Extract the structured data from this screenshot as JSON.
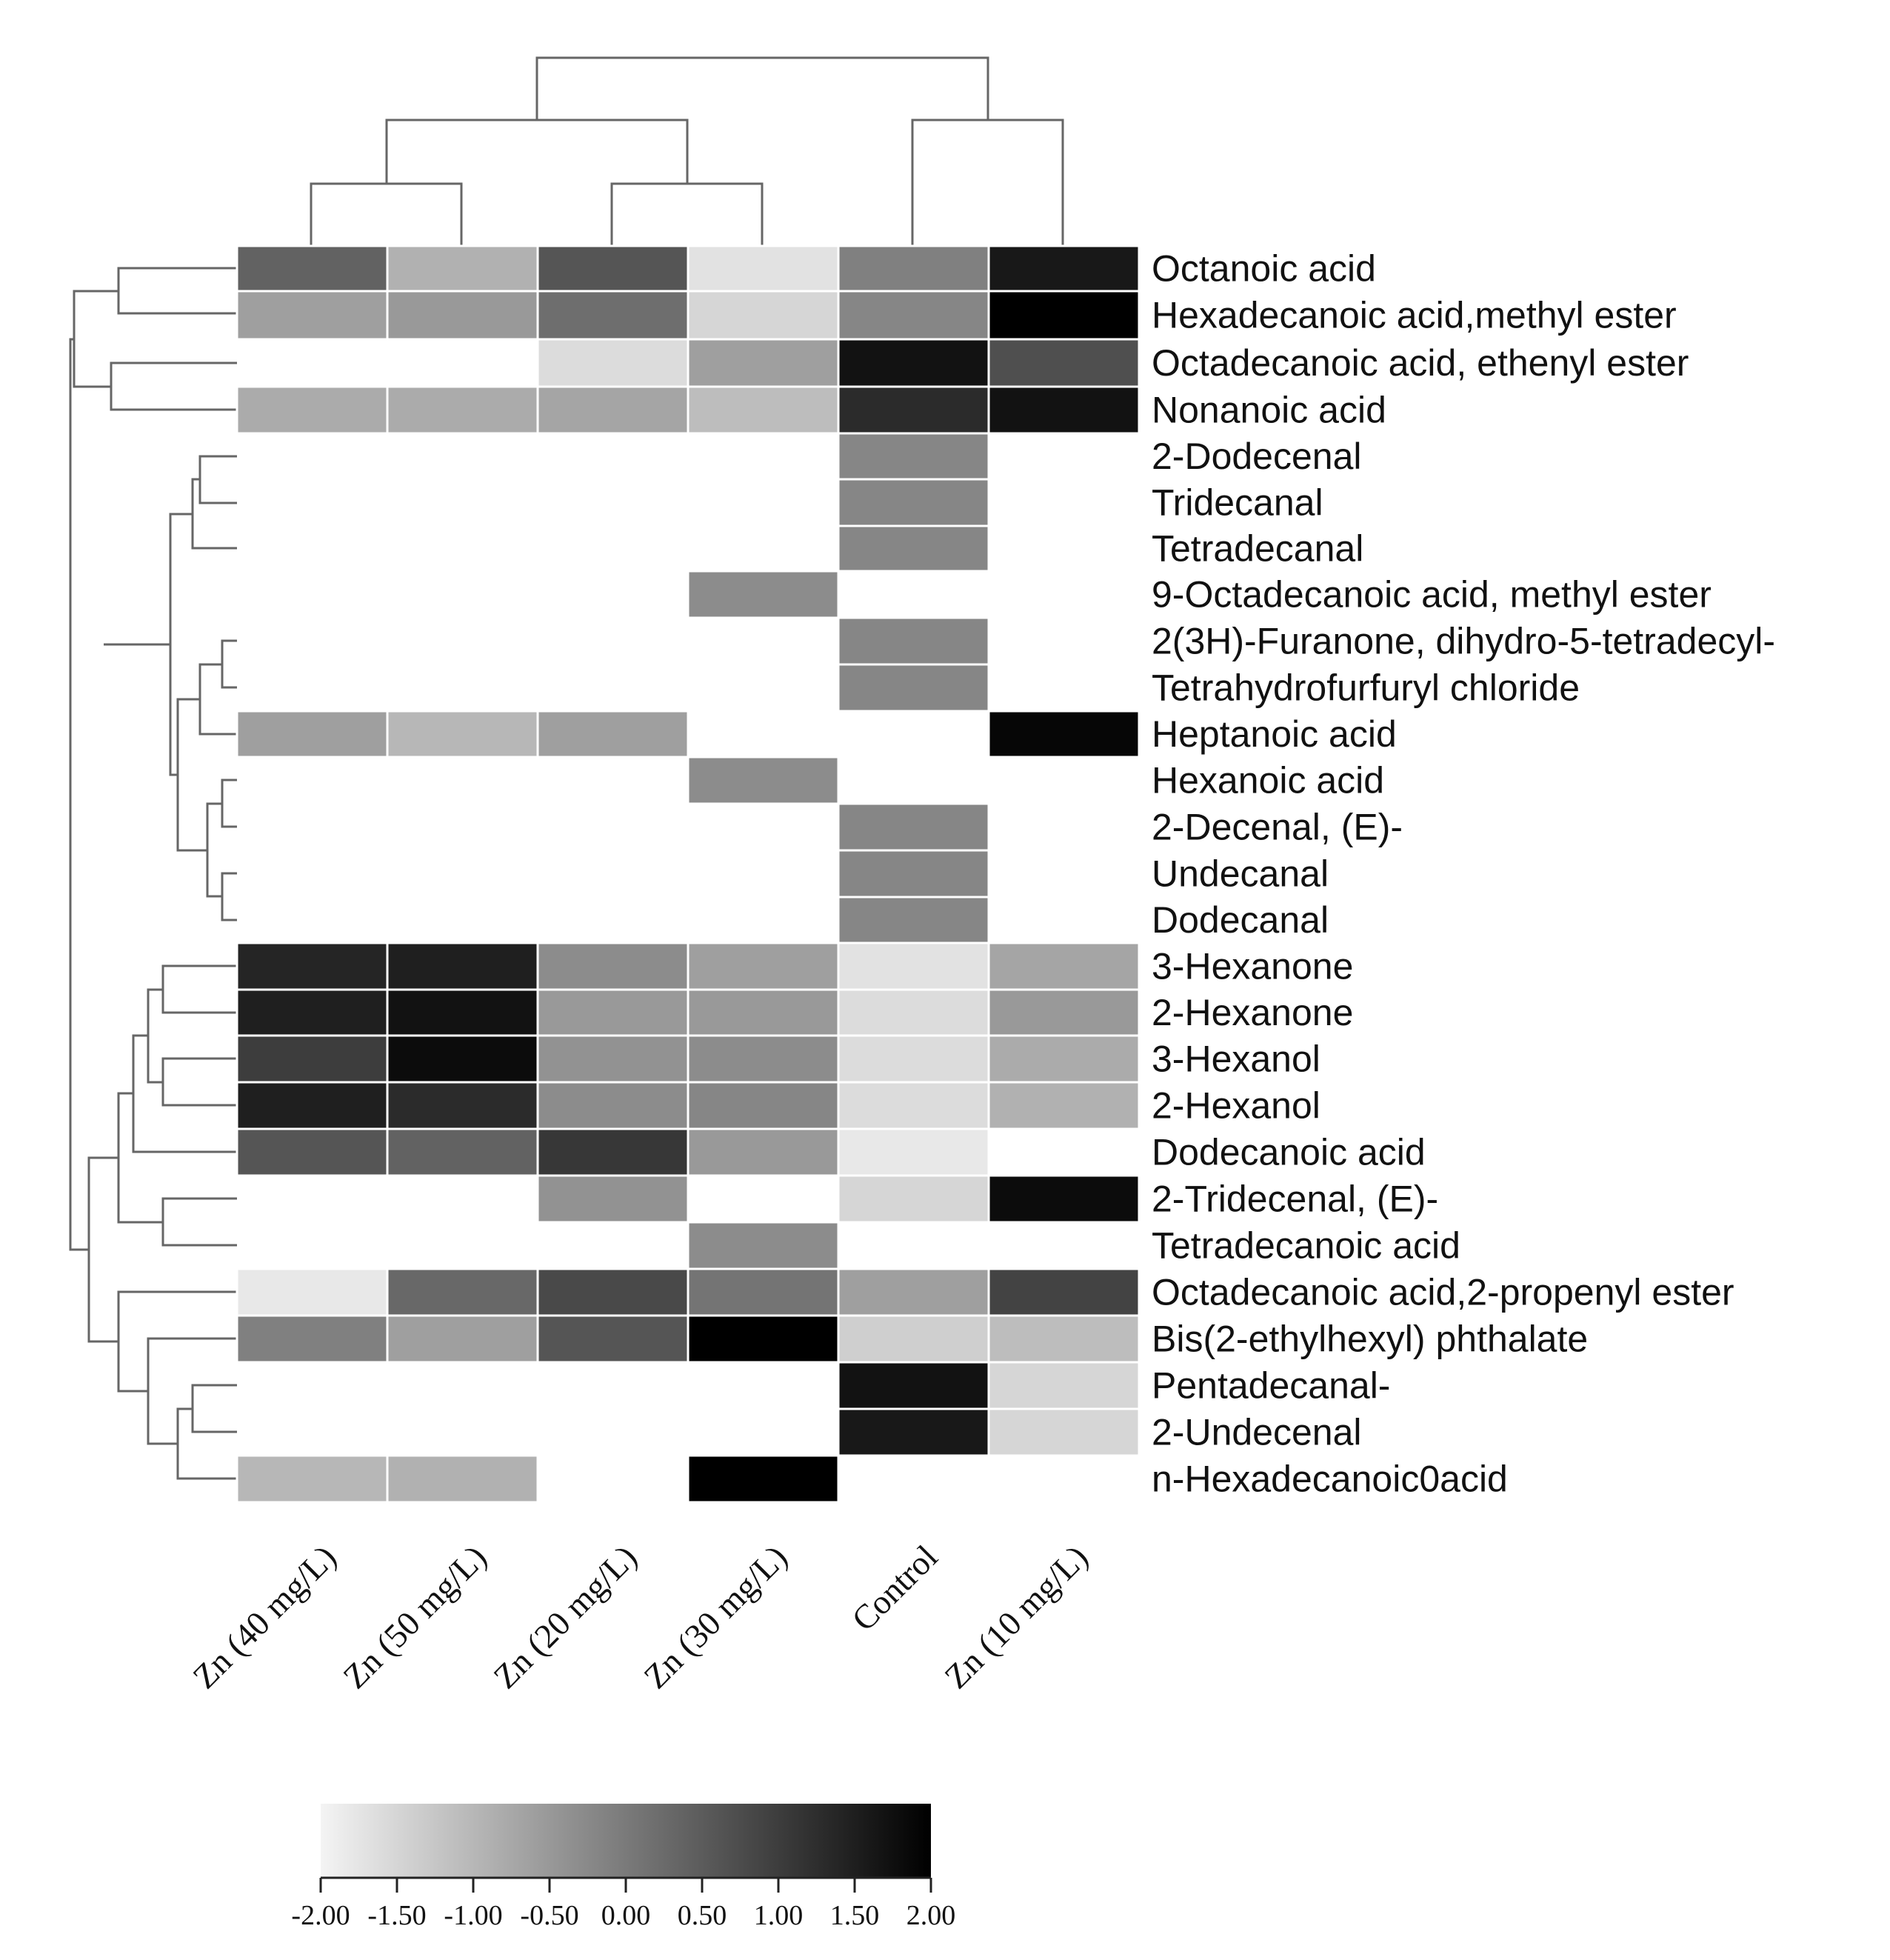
{
  "chart_data": {
    "type": "heatmap",
    "title": "",
    "columns": [
      "Zn (40 mg/L)",
      "Zn (50 mg/L)",
      "Zn (20 mg/L)",
      "Zn (30 mg/L)",
      "Control",
      "Zn (10 mg/L)"
    ],
    "rows": [
      "Octanoic acid",
      "Hexadecanoic acid,methyl ester",
      "Octadecanoic acid, ethenyl ester",
      "Nonanoic acid",
      "2-Dodecenal",
      "Tridecanal",
      "Tetradecanal",
      "9-Octadecanoic acid, methyl ester",
      "2(3H)-Furanone, dihydro-5-tetradecyl-",
      "Tetrahydrofurfuryl chloride",
      "Heptanoic acid",
      "Hexanoic acid",
      "2-Decenal, (E)-",
      "Undecanal",
      "Dodecanal",
      "3-Hexanone",
      "2-Hexanone",
      "3-Hexanol",
      "2-Hexanol",
      "Dodecanoic acid",
      "2-Tridecenal, (E)-",
      "Tetradecanoic acid",
      "Octadecanoic acid,2-propenyl ester",
      "Bis(2-ethylhexyl) phthalate",
      "Pentadecanal-",
      "2-Undecenal",
      "n-Hexadecanoic0acid"
    ],
    "values": [
      [
        0.4,
        -0.9,
        0.6,
        -1.7,
        -0.1,
        1.6
      ],
      [
        -0.6,
        -0.5,
        0.2,
        -1.5,
        -0.2,
        2.0
      ],
      [
        null,
        null,
        -1.6,
        -0.6,
        1.7,
        0.7
      ],
      [
        -0.8,
        -0.8,
        -0.7,
        -1.1,
        1.3,
        1.7
      ],
      [
        null,
        null,
        null,
        null,
        -0.2,
        null
      ],
      [
        null,
        null,
        null,
        null,
        -0.2,
        null
      ],
      [
        null,
        null,
        null,
        null,
        -0.2,
        null
      ],
      [
        null,
        null,
        null,
        -0.3,
        null,
        null
      ],
      [
        null,
        null,
        null,
        null,
        -0.2,
        null
      ],
      [
        null,
        null,
        null,
        null,
        -0.2,
        null
      ],
      [
        -0.6,
        -1.0,
        -0.6,
        null,
        null,
        1.9
      ],
      [
        null,
        null,
        null,
        -0.3,
        null,
        null
      ],
      [
        null,
        null,
        null,
        null,
        -0.2,
        null
      ],
      [
        null,
        null,
        null,
        null,
        -0.2,
        null
      ],
      [
        null,
        null,
        null,
        null,
        -0.2,
        null
      ],
      [
        1.4,
        1.5,
        -0.3,
        -0.6,
        -1.7,
        -0.7
      ],
      [
        1.5,
        1.7,
        -0.5,
        -0.5,
        -1.6,
        -0.5
      ],
      [
        1.0,
        1.8,
        -0.4,
        -0.3,
        -1.6,
        -0.8
      ],
      [
        1.5,
        1.3,
        -0.3,
        -0.2,
        -1.6,
        -0.9
      ],
      [
        0.6,
        0.4,
        1.1,
        -0.5,
        -1.8,
        null
      ],
      [
        null,
        null,
        -0.4,
        null,
        -1.5,
        1.8
      ],
      [
        null,
        null,
        null,
        -0.3,
        null,
        null
      ],
      [
        -1.8,
        0.3,
        0.8,
        0.1,
        -0.6,
        0.9
      ],
      [
        -0.1,
        -0.6,
        0.6,
        2.0,
        -1.4,
        -1.1
      ],
      [
        null,
        null,
        null,
        null,
        1.7,
        -1.5
      ],
      [
        null,
        null,
        null,
        null,
        1.6,
        -1.5
      ],
      [
        -1.0,
        -0.9,
        null,
        2.0,
        null,
        null
      ]
    ],
    "color_scale": {
      "min": -2.0,
      "max": 2.0,
      "low_color": "#f4f4f4",
      "high_color": "#000000",
      "ticks": [
        "-2.00",
        "-1.50",
        "-1.00",
        "-0.50",
        "0.00",
        "0.50",
        "1.00",
        "1.50",
        "2.00"
      ]
    },
    "xlabel": "",
    "ylabel": ""
  }
}
